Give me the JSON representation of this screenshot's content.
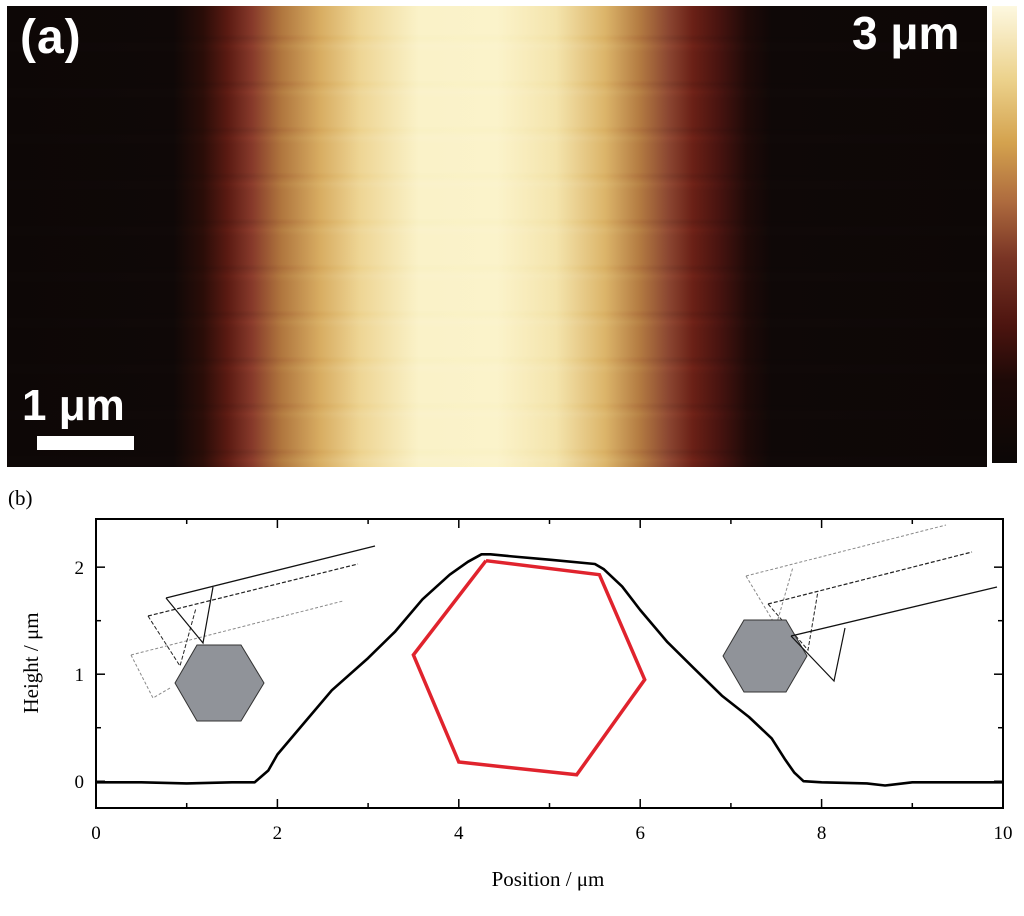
{
  "panel_a": {
    "label": "(a)",
    "scale_bar_label": "1 μm",
    "color_scale_label": "3 μm"
  },
  "panel_b": {
    "label": "(b)"
  },
  "chart_data": {
    "type": "line",
    "xlabel": "Position / μm",
    "ylabel": "Height / μm",
    "xlim": [
      0,
      10
    ],
    "ylim": [
      -0.25,
      2.45
    ],
    "xticks": [
      0,
      2,
      4,
      6,
      8,
      10
    ],
    "xticks_minor": [
      1,
      3,
      5,
      7,
      9
    ],
    "yticks": [
      0,
      1,
      2
    ],
    "yticks_minor": [
      0.5,
      1.5
    ],
    "series": [
      {
        "color": "#000000",
        "x": [
          0.0,
          0.5,
          1.0,
          1.5,
          1.75,
          1.9,
          2.0,
          2.3,
          2.6,
          3.0,
          3.3,
          3.6,
          3.9,
          4.1,
          4.25,
          4.35,
          4.6,
          5.0,
          5.5,
          5.6,
          5.8,
          6.0,
          6.3,
          6.6,
          6.9,
          7.2,
          7.45,
          7.6,
          7.7,
          7.8,
          8.0,
          8.5,
          8.7,
          9.0,
          9.5,
          10.0
        ],
        "y": [
          -0.01,
          -0.01,
          -0.02,
          -0.01,
          -0.01,
          0.1,
          0.25,
          0.55,
          0.85,
          1.15,
          1.4,
          1.7,
          1.93,
          2.05,
          2.12,
          2.12,
          2.1,
          2.07,
          2.03,
          1.98,
          1.82,
          1.6,
          1.3,
          1.05,
          0.8,
          0.6,
          0.4,
          0.2,
          0.08,
          0.0,
          -0.01,
          -0.02,
          -0.04,
          -0.01,
          -0.01,
          -0.01
        ]
      }
    ],
    "annotation": {
      "red_hexagon": {
        "color": "#e0232d",
        "x": [
          4.3,
          5.55,
          6.05,
          5.3,
          4.0,
          3.5,
          4.3
        ],
        "y": [
          2.06,
          1.93,
          0.95,
          0.06,
          0.18,
          1.18,
          2.06
        ]
      }
    }
  }
}
